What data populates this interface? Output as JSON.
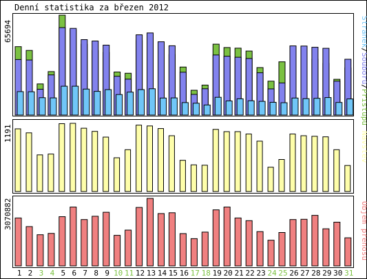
{
  "title": "Denní statistika za březen 2012",
  "colors": {
    "frame": "#000000",
    "access": "#7bc142",
    "files": "#8282ee",
    "pages": "#70c6f8",
    "visits": "#fefeaa",
    "volume": "#f08080",
    "weekday": "#000000",
    "weekend": "#7bc142",
    "legend_sep": "#000000"
  },
  "chart_data": [
    {
      "type": "bar",
      "panel": "requests",
      "title": "",
      "max_label": "65694",
      "ylim": [
        0,
        65694
      ],
      "legend_labels": [
        "Stránek",
        "Souborů",
        "Přístupů"
      ],
      "legend_separator": "/",
      "legend_placement": "right",
      "categories": [
        "1",
        "2",
        "3",
        "4",
        "5",
        "6",
        "7",
        "8",
        "9",
        "10",
        "11",
        "12",
        "13",
        "14",
        "15",
        "16",
        "17",
        "18",
        "19",
        "20",
        "21",
        "22",
        "23",
        "24",
        "25",
        "26",
        "27",
        "28",
        "29",
        "30",
        "31"
      ],
      "series": [
        {
          "name": "Přístupů",
          "values": [
            45000,
            42500,
            20500,
            28600,
            65694,
            56000,
            46600,
            42500,
            41200,
            28300,
            27500,
            49000,
            48200,
            43300,
            39800,
            31600,
            16300,
            19700,
            46600,
            44400,
            44000,
            42100,
            31200,
            22300,
            35000,
            40200,
            39600,
            36800,
            34000,
            23500,
            31000
          ]
        },
        {
          "name": "Souborů",
          "values": [
            36500,
            36200,
            17000,
            26400,
            57500,
            57000,
            49600,
            48700,
            46000,
            25500,
            23600,
            52800,
            54000,
            48200,
            45600,
            28200,
            13600,
            17300,
            39500,
            38700,
            38000,
            37200,
            27800,
            17200,
            21100,
            45500,
            45400,
            44600,
            43900,
            22300,
            36700
          ]
        },
        {
          "name": "Stránek",
          "values": [
            15400,
            15300,
            11400,
            11300,
            19000,
            19000,
            17100,
            15600,
            16700,
            13500,
            15100,
            16700,
            17300,
            11200,
            11300,
            8200,
            7800,
            6600,
            11700,
            9300,
            10700,
            9400,
            9000,
            8400,
            8100,
            11200,
            10800,
            11000,
            11500,
            8300,
            10600
          ]
        }
      ]
    },
    {
      "type": "bar",
      "panel": "visits",
      "title": "",
      "max_label": "1191",
      "ylim": [
        0,
        1191
      ],
      "legend_labels": [
        "Návštěv"
      ],
      "legend_placement": "right",
      "categories": [
        "1",
        "2",
        "3",
        "4",
        "5",
        "6",
        "7",
        "8",
        "9",
        "10",
        "11",
        "12",
        "13",
        "14",
        "15",
        "16",
        "17",
        "18",
        "19",
        "20",
        "21",
        "22",
        "23",
        "24",
        "25",
        "26",
        "27",
        "28",
        "29",
        "30",
        "31"
      ],
      "series": [
        {
          "name": "Návštěv",
          "values": [
            1095,
            1025,
            640,
            655,
            1185,
            1191,
            1105,
            1050,
            950,
            590,
            730,
            1160,
            1145,
            1100,
            975,
            545,
            465,
            460,
            1085,
            1045,
            1045,
            1005,
            880,
            425,
            560,
            1005,
            975,
            965,
            955,
            730,
            455
          ]
        }
      ]
    },
    {
      "type": "bar",
      "panel": "volume",
      "title": "",
      "max_label": "3070882",
      "ylim": [
        0,
        3070882
      ],
      "legend_labels": [
        "Objem přenosu"
      ],
      "legend_placement": "right",
      "categories": [
        "1",
        "2",
        "3",
        "4",
        "5",
        "6",
        "7",
        "8",
        "9",
        "10",
        "11",
        "12",
        "13",
        "14",
        "15",
        "16",
        "17",
        "18",
        "19",
        "20",
        "21",
        "22",
        "23",
        "24",
        "25",
        "26",
        "27",
        "28",
        "29",
        "30",
        "31"
      ],
      "series": [
        {
          "name": "Objem přenosu",
          "values": [
            2180000,
            1790000,
            1420000,
            1480000,
            2240000,
            2680000,
            2110000,
            2260000,
            2440000,
            1390000,
            1630000,
            2660000,
            3070882,
            2380000,
            2420000,
            1470000,
            1240000,
            1540000,
            2550000,
            2680000,
            2180000,
            2060000,
            1560000,
            1170000,
            1520000,
            2110000,
            2120000,
            2300000,
            1690000,
            1990000,
            1280000
          ]
        }
      ]
    }
  ],
  "days": [
    {
      "label": "1",
      "weekend": false
    },
    {
      "label": "2",
      "weekend": false
    },
    {
      "label": "3",
      "weekend": true
    },
    {
      "label": "4",
      "weekend": true
    },
    {
      "label": "5",
      "weekend": false
    },
    {
      "label": "6",
      "weekend": false
    },
    {
      "label": "7",
      "weekend": false
    },
    {
      "label": "8",
      "weekend": false
    },
    {
      "label": "9",
      "weekend": false
    },
    {
      "label": "10",
      "weekend": true
    },
    {
      "label": "11",
      "weekend": true
    },
    {
      "label": "12",
      "weekend": false
    },
    {
      "label": "13",
      "weekend": false
    },
    {
      "label": "14",
      "weekend": false
    },
    {
      "label": "15",
      "weekend": false
    },
    {
      "label": "16",
      "weekend": false
    },
    {
      "label": "17",
      "weekend": true
    },
    {
      "label": "18",
      "weekend": true
    },
    {
      "label": "19",
      "weekend": false
    },
    {
      "label": "20",
      "weekend": false
    },
    {
      "label": "21",
      "weekend": false
    },
    {
      "label": "22",
      "weekend": false
    },
    {
      "label": "23",
      "weekend": false
    },
    {
      "label": "24",
      "weekend": true
    },
    {
      "label": "25",
      "weekend": true
    },
    {
      "label": "26",
      "weekend": false
    },
    {
      "label": "27",
      "weekend": false
    },
    {
      "label": "28",
      "weekend": false
    },
    {
      "label": "29",
      "weekend": false
    },
    {
      "label": "30",
      "weekend": false
    },
    {
      "label": "31",
      "weekend": true
    }
  ]
}
